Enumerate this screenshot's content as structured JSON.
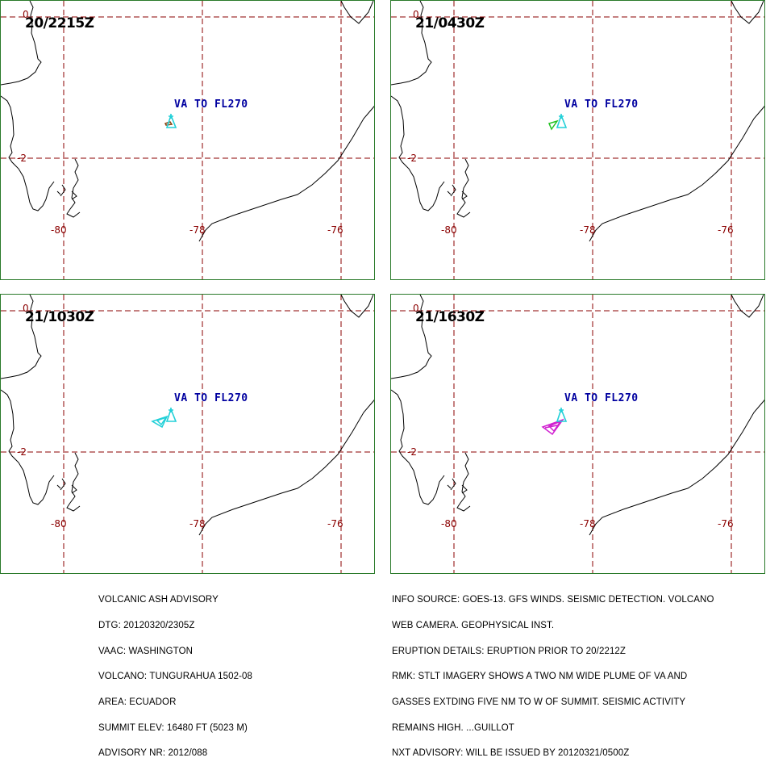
{
  "panels": [
    {
      "timestamp": "20/2215Z",
      "label": "VA TO FL270",
      "ash_color": "#8b4513"
    },
    {
      "timestamp": "21/0430Z",
      "label": "VA TO FL270",
      "ash_color": "#22c222"
    },
    {
      "timestamp": "21/1030Z",
      "label": "VA TO FL270",
      "ash_color": "#22d0d8"
    },
    {
      "timestamp": "21/1630Z",
      "label": "VA TO FL270",
      "ash_color": "#d020d0"
    }
  ],
  "grid_labels": {
    "lat_top": "0",
    "lat_mid": "-2",
    "lon_1": "-80",
    "lon_2": "-78",
    "lon_3": "-76"
  },
  "advisory_left": [
    "VOLCANIC ASH ADVISORY",
    "DTG: 20120320/2305Z",
    "VAAC: WASHINGTON",
    "VOLCANO: TUNGURAHUA 1502-08",
    "AREA: ECUADOR",
    "SUMMIT ELEV: 16480 FT (5023 M)",
    "ADVISORY NR: 2012/088"
  ],
  "advisory_right": [
    "INFO SOURCE: GOES-13. GFS WINDS. SEISMIC DETECTION. VOLCANO",
    "WEB CAMERA. GEOPHYSICAL INST.",
    "ERUPTION DETAILS: ERUPTION PRIOR TO 20/2212Z",
    "RMK: STLT IMAGERY SHOWS A TWO NM WIDE PLUME OF VA AND",
    "GASSES EXTDING FIVE NM TO W OF SUMMIT. SEISMIC ACTIVITY",
    "REMAINS HIGH. ...GUILLOT",
    "NXT ADVISORY: WILL BE ISSUED BY 20120321/0500Z"
  ],
  "colors": {
    "grid": "#8b0000",
    "coast": "#000000",
    "volcano_marker": "#22d0d8",
    "label_text": "#0000a0",
    "border": "#2a7a2a"
  }
}
